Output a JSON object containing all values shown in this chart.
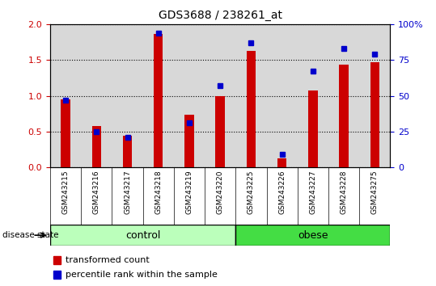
{
  "title": "GDS3688 / 238261_at",
  "samples": [
    "GSM243215",
    "GSM243216",
    "GSM243217",
    "GSM243218",
    "GSM243219",
    "GSM243220",
    "GSM243225",
    "GSM243226",
    "GSM243227",
    "GSM243228",
    "GSM243275"
  ],
  "groups": [
    "control",
    "control",
    "control",
    "control",
    "control",
    "control",
    "obese",
    "obese",
    "obese",
    "obese",
    "obese"
  ],
  "red_values": [
    0.95,
    0.58,
    0.44,
    1.87,
    0.73,
    1.0,
    1.63,
    0.13,
    1.07,
    1.44,
    1.47
  ],
  "blue_values_pct": [
    47,
    25,
    21,
    94,
    31,
    57,
    87,
    9,
    67,
    83,
    79
  ],
  "ylim_left": [
    0,
    2
  ],
  "ylim_right": [
    0,
    100
  ],
  "yticks_left": [
    0,
    0.5,
    1.0,
    1.5,
    2.0
  ],
  "yticks_right": [
    0,
    25,
    50,
    75,
    100
  ],
  "ylabel_left_color": "#cc0000",
  "ylabel_right_color": "#0000cc",
  "bar_color": "#cc0000",
  "dot_color": "#0000cc",
  "control_color": "#bbffbb",
  "obese_color": "#44dd44",
  "plot_bg_color": "#d8d8d8",
  "legend_red_label": "transformed count",
  "legend_blue_label": "percentile rank within the sample",
  "disease_state_label": "disease state",
  "control_label": "control",
  "obese_label": "obese",
  "bar_width": 0.3
}
